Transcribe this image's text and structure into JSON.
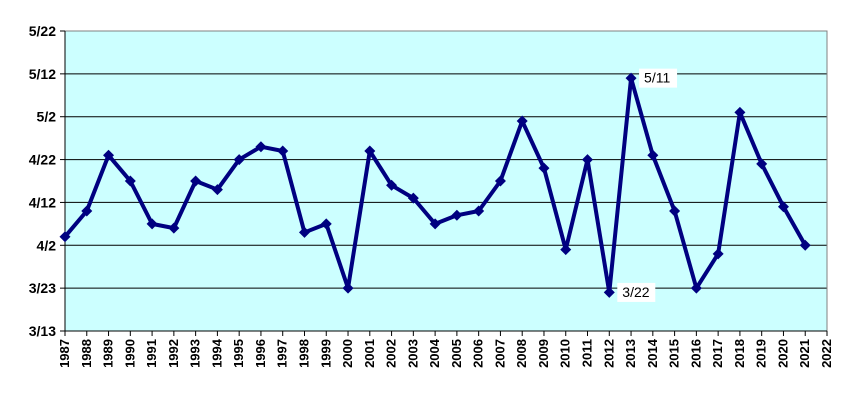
{
  "chart_data": {
    "type": "line",
    "title": "",
    "xlabel": "",
    "ylabel": "",
    "x": [
      1987,
      1988,
      1989,
      1990,
      1991,
      1992,
      1993,
      1994,
      1995,
      1996,
      1997,
      1998,
      1999,
      2000,
      2001,
      2002,
      2003,
      2004,
      2005,
      2006,
      2007,
      2008,
      2009,
      2010,
      2011,
      2012,
      2013,
      2014,
      2015,
      2016,
      2017,
      2018,
      2019,
      2020,
      2021
    ],
    "x_ticks": [
      "1987",
      "1988",
      "1989",
      "1990",
      "1991",
      "1992",
      "1993",
      "1994",
      "1995",
      "1996",
      "1997",
      "1998",
      "1999",
      "2000",
      "2001",
      "2002",
      "2003",
      "2004",
      "2005",
      "2006",
      "2007",
      "2008",
      "2009",
      "2010",
      "2011",
      "2012",
      "2013",
      "2014",
      "2015",
      "2016",
      "2017",
      "2018",
      "2019",
      "2020",
      "2021",
      "2022"
    ],
    "xlim": [
      1987,
      2022
    ],
    "y_ticks": [
      "3/13",
      "3/23",
      "4/2",
      "4/12",
      "4/22",
      "5/2",
      "5/12",
      "5/22"
    ],
    "y_unit": "day of year",
    "ylim": [
      "3/13",
      "5/22"
    ],
    "series": [
      {
        "values": [
          "4/4",
          "4/10",
          "4/23",
          "4/17",
          "4/7",
          "4/6",
          "4/17",
          "4/15",
          "4/22",
          "4/25",
          "4/24",
          "4/5",
          "4/7",
          "3/23",
          "4/24",
          "4/16",
          "4/13",
          "4/7",
          "4/9",
          "4/10",
          "4/17",
          "5/1",
          "4/20",
          "4/1",
          "4/22",
          "3/22",
          "5/11",
          "4/23",
          "4/10",
          "3/23",
          "3/31",
          "5/3",
          "4/21",
          "4/11",
          "4/2"
        ],
        "color": "#000080",
        "marker": "diamond"
      }
    ],
    "annotations": [
      {
        "x": 2013,
        "text": "5/11"
      },
      {
        "x": 2012,
        "text": "3/22"
      }
    ],
    "plot_background": "#ccffff",
    "grid": true,
    "legend": "none"
  }
}
